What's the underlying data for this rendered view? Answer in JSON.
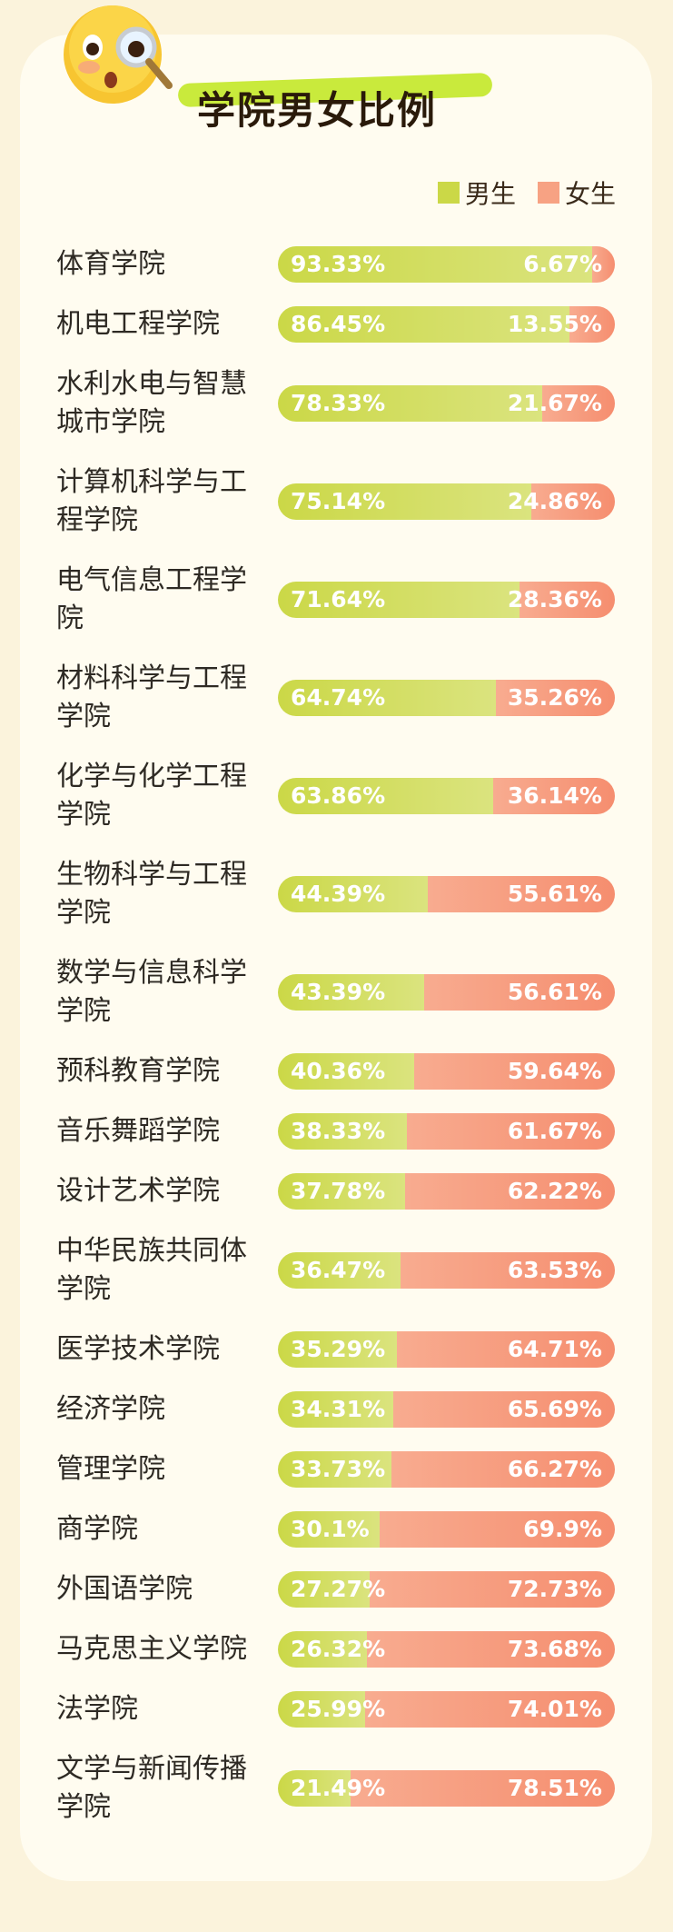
{
  "chart_data": {
    "type": "bar",
    "orientation": "horizontal",
    "stacked": true,
    "title": "学院男女比例",
    "xlim": [
      0,
      100
    ],
    "legend": "top-right",
    "categories": [
      "体育学院",
      "机电工程学院",
      "水利水电与智慧城市学院",
      "计算机科学与工程学院",
      "电气信息工程学院",
      "材料科学与工程学院",
      "化学与化学工程学院",
      "生物科学与工程学院",
      "数学与信息科学学院",
      "预科教育学院",
      "音乐舞蹈学院",
      "设计艺术学院",
      "中华民族共同体学院",
      "医学技术学院",
      "经济学院",
      "管理学院",
      "商学院",
      "外国语学院",
      "马克思主义学院",
      "法学院",
      "文学与新闻传播学院"
    ],
    "series": [
      {
        "name": "男生",
        "color": "#cbd847",
        "values": [
          93.33,
          86.45,
          78.33,
          75.14,
          71.64,
          64.74,
          63.86,
          44.39,
          43.39,
          40.36,
          38.33,
          37.78,
          36.47,
          35.29,
          34.31,
          33.73,
          30.1,
          27.27,
          26.32,
          25.99,
          21.49
        ],
        "value_labels": [
          "93.33%",
          "86.45%",
          "78.33%",
          "75.14%",
          "71.64%",
          "64.74%",
          "63.86%",
          "44.39%",
          "43.39%",
          "40.36%",
          "38.33%",
          "37.78%",
          "36.47%",
          "35.29%",
          "34.31%",
          "33.73%",
          "30.1%",
          "27.27%",
          "26.32%",
          "25.99%",
          "21.49%"
        ]
      },
      {
        "name": "女生",
        "color": "#f7a283",
        "values": [
          6.67,
          13.55,
          21.67,
          24.86,
          28.36,
          35.26,
          36.14,
          55.61,
          56.61,
          59.64,
          61.67,
          62.22,
          63.53,
          64.71,
          65.69,
          66.27,
          69.9,
          72.73,
          73.68,
          74.01,
          78.51
        ],
        "value_labels": [
          "6.67%",
          "13.55%",
          "21.67%",
          "24.86%",
          "28.36%",
          "35.26%",
          "36.14%",
          "55.61%",
          "56.61%",
          "59.64%",
          "61.67%",
          "62.22%",
          "63.53%",
          "64.71%",
          "65.69%",
          "66.27%",
          "69.9%",
          "72.73%",
          "73.68%",
          "74.01%",
          "78.51%"
        ]
      }
    ]
  }
}
